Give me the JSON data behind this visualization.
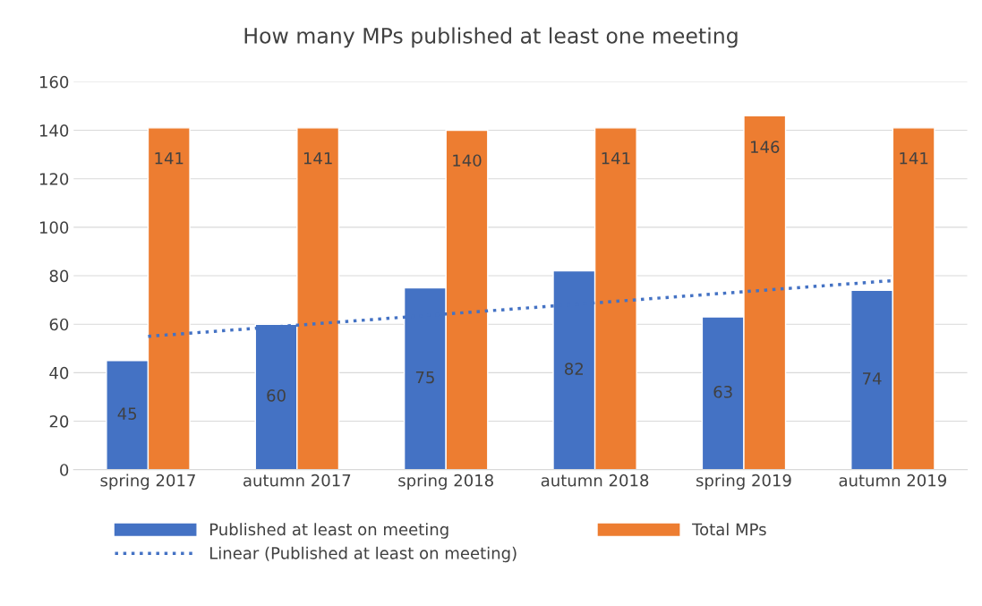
{
  "chart_data": {
    "type": "bar",
    "title": "How many MPs published at least one meeting",
    "categories": [
      "spring 2017",
      "autumn 2017",
      "spring 2018",
      "autumn 2018",
      "spring 2019",
      "autumn 2019"
    ],
    "series": [
      {
        "name": "Published at least on meeting",
        "color": "#4472c4",
        "values": [
          45,
          60,
          75,
          82,
          63,
          74
        ],
        "value_labels": [
          "45",
          "60",
          "75",
          "82",
          "63",
          "74"
        ]
      },
      {
        "name": "Total MPs",
        "color": "#ed7d31",
        "values": [
          141,
          141,
          140,
          141,
          146,
          141
        ],
        "value_labels": [
          "141",
          "141",
          "140",
          "141",
          "146",
          "141"
        ]
      },
      {
        "name": "Linear (Published at least on meeting)",
        "type": "line",
        "line_style": "dotted",
        "marker": "none",
        "color": "#4472c4",
        "values": [
          55,
          59.6,
          64.2,
          68.8,
          73.4,
          78
        ]
      }
    ],
    "ylim": [
      0,
      160
    ],
    "yticks": [
      0,
      20,
      40,
      60,
      80,
      100,
      120,
      140,
      160
    ],
    "grid": "y",
    "legend": "bottom"
  }
}
